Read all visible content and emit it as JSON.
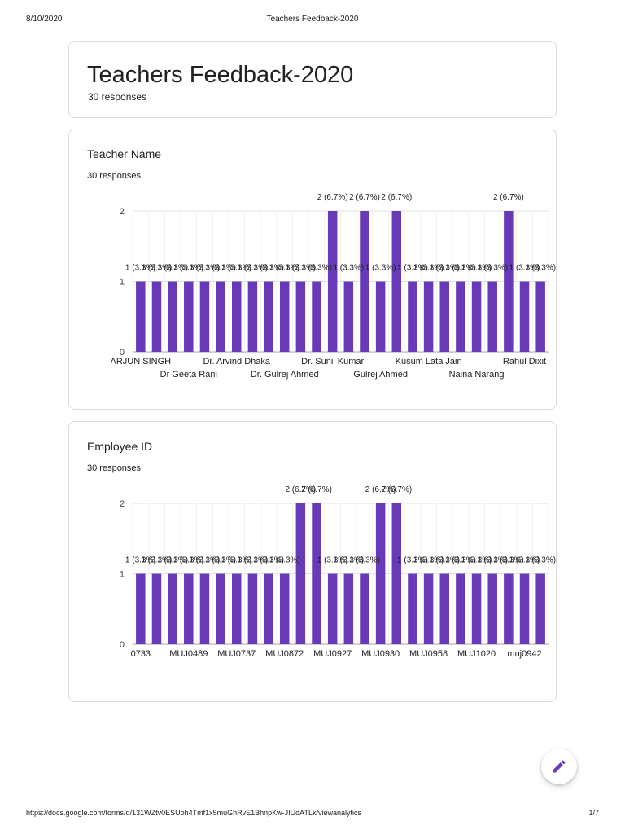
{
  "print_header": {
    "date": "8/10/2020",
    "title": "Teachers Feedback-2020"
  },
  "print_footer": {
    "url": "https://docs.google.com/forms/d/131WZtv0ESUoh4Tmf1x5muGhRvE1BhnpKw-JIUdATLk/viewanalytics",
    "page": "1/7"
  },
  "form": {
    "title": "Teachers Feedback-2020",
    "responses": "30 responses"
  },
  "colors": {
    "bar": "#673ab7",
    "grid": "#e0e0e0",
    "card_border": "#dadce0",
    "fab_icon": "#673ab7"
  },
  "icons": {
    "fab": "pencil-icon"
  },
  "questions": [
    {
      "title": "Teacher Name",
      "responses": "30 responses"
    },
    {
      "title": "Employee ID",
      "responses": "30 responses"
    }
  ],
  "chart_data": [
    {
      "type": "bar",
      "title": "Teacher Name",
      "ylim": [
        0,
        2
      ],
      "yticks": [
        "0",
        "1",
        "2"
      ],
      "grid": true,
      "values": [
        1,
        1,
        1,
        1,
        1,
        1,
        1,
        1,
        1,
        1,
        1,
        1,
        2,
        1,
        2,
        1,
        2,
        1,
        1,
        1,
        1,
        1,
        1,
        2,
        1,
        1
      ],
      "bar_labels_shown": [
        "1 (3.3%)",
        "1 (3.3%)",
        "1 (3.3%)",
        "1 (3.3%)",
        "1 (3.3%)",
        "1 (3.3%)",
        "1 (3.3%)",
        "1 (3.3%)",
        "1 (3.3%)",
        "1 (3.3%)",
        "1 (3.3%)",
        "1 (3.3%)",
        "2 (6.7%)",
        "1 (3.3%)",
        "2 (6.7%)",
        "1 (3.3%)",
        "2 (6.7%)",
        "1 (3.3%)",
        "1 (3.3%)",
        "1 (3.3%)",
        "1 (3.3%)",
        "1 (3.3%)",
        "1 (3.3%)",
        "2 (6.7%)",
        "1 (3.3%)",
        "1 (3.3%)"
      ],
      "visible_category_labels": [
        {
          "bar": 0,
          "text": "ARJUN SINGH",
          "row": 1
        },
        {
          "bar": 3,
          "text": "Dr Geeta Rani",
          "row": 2
        },
        {
          "bar": 6,
          "text": "Dr. Arvind Dhaka",
          "row": 1
        },
        {
          "bar": 9,
          "text": "Dr. Gulrej Ahmed",
          "row": 2
        },
        {
          "bar": 12,
          "text": "Dr. Sunil Kumar",
          "row": 1
        },
        {
          "bar": 15,
          "text": "Gulrej Ahmed",
          "row": 2
        },
        {
          "bar": 18,
          "text": "Kusum Lata Jain",
          "row": 1
        },
        {
          "bar": 21,
          "text": "Naina Narang",
          "row": 2
        },
        {
          "bar": 24,
          "text": "Rahul Dixit",
          "row": 1
        }
      ]
    },
    {
      "type": "bar",
      "title": "Employee ID",
      "ylim": [
        0,
        2
      ],
      "yticks": [
        "0",
        "1",
        "2"
      ],
      "grid": true,
      "values": [
        1,
        1,
        1,
        1,
        1,
        1,
        1,
        1,
        1,
        1,
        2,
        2,
        1,
        1,
        1,
        2,
        2,
        1,
        1,
        1,
        1,
        1,
        1,
        1,
        1,
        1
      ],
      "bar_labels_shown": [
        "1 (3.3%)",
        "1 (3.3%)",
        "1 (3.3%)",
        "1 (3.3%)",
        "1 (3.3%)",
        "1 (3.3%)",
        "1 (3.3%)",
        "1 (3.3%)",
        "1 (3.3%)",
        "1 (3.3%)",
        "2 (6.7%)",
        "2 (6.7%)",
        "1 (3.3%)",
        "1 (3.3%)",
        "1 (3.3%)",
        "2 (6.7%)",
        "2 (6.7%)",
        "1 (3.3%)",
        "1 (3.3%)",
        "1 (3.3%)",
        "1 (3.3%)",
        "1 (3.3%)",
        "1 (3.3%)",
        "1 (3.3%)",
        "1 (3.3%)",
        "1 (3.3%)"
      ],
      "visible_category_labels": [
        {
          "bar": 0,
          "text": "0733",
          "row": 1
        },
        {
          "bar": 3,
          "text": "MUJ0489",
          "row": 1
        },
        {
          "bar": 6,
          "text": "MUJ0737",
          "row": 1
        },
        {
          "bar": 9,
          "text": "MUJ0872",
          "row": 1
        },
        {
          "bar": 12,
          "text": "MUJ0927",
          "row": 1
        },
        {
          "bar": 15,
          "text": "MUJ0930",
          "row": 1
        },
        {
          "bar": 18,
          "text": "MUJ0958",
          "row": 1
        },
        {
          "bar": 21,
          "text": "MUJ1020",
          "row": 1
        },
        {
          "bar": 24,
          "text": "muj0942",
          "row": 1
        }
      ]
    }
  ]
}
